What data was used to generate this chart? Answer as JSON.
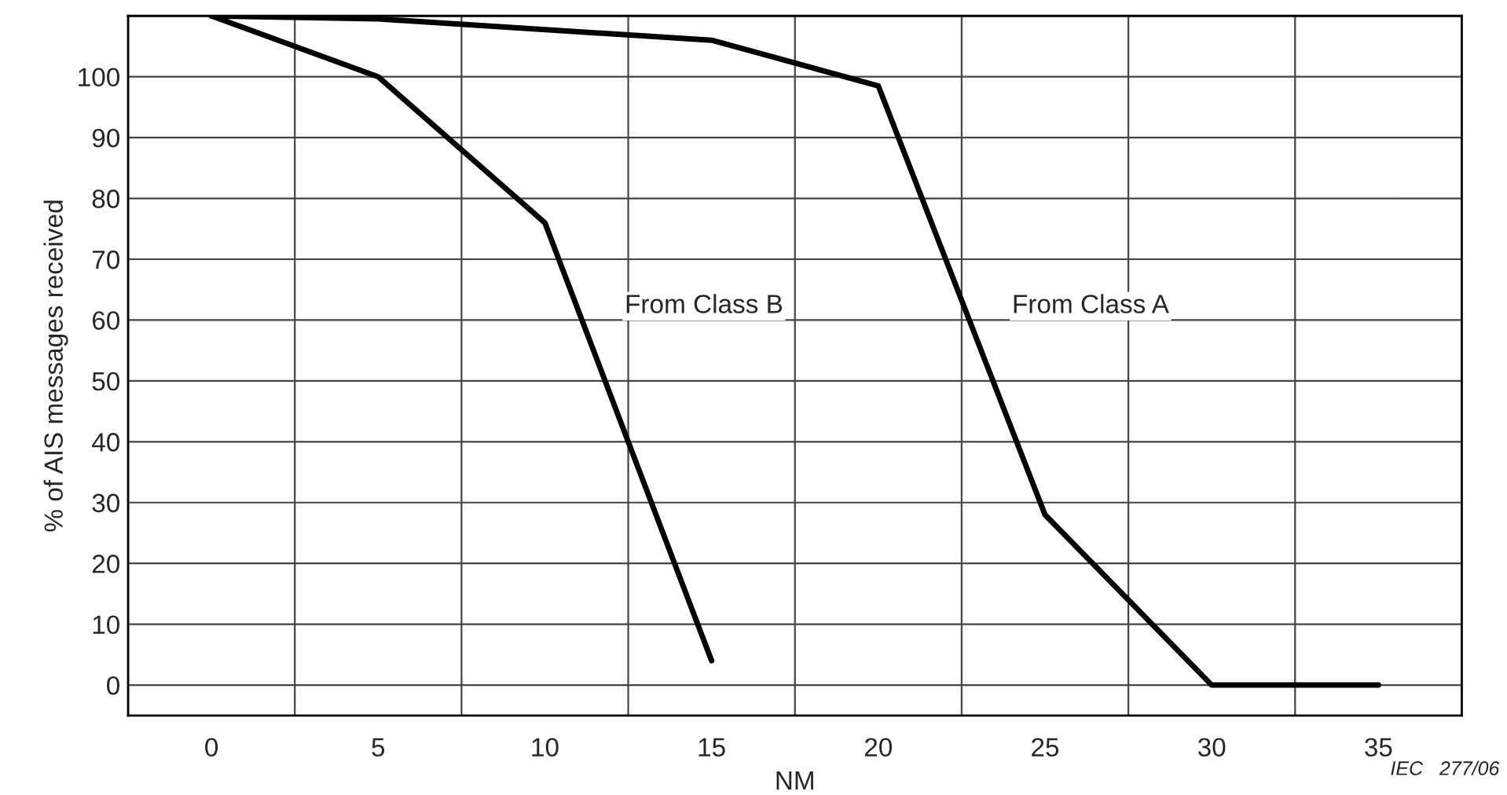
{
  "chart_data": {
    "type": "line",
    "xlabel": "NM",
    "ylabel": "% of AIS messages received",
    "series": [
      {
        "name": "From Class A",
        "color": "#000000",
        "x": [
          0,
          5,
          15,
          20,
          25,
          30,
          35
        ],
        "values": [
          110,
          109.5,
          106,
          98.5,
          28,
          0,
          0
        ]
      },
      {
        "name": "From Class B",
        "color": "#000000",
        "x": [
          0,
          5,
          10,
          15
        ],
        "values": [
          110,
          100,
          76,
          4
        ]
      }
    ],
    "xlim": [
      -2.5,
      37.5
    ],
    "ylim": [
      -5,
      110
    ],
    "xticks": [
      0,
      5,
      10,
      15,
      20,
      25,
      30,
      35,
      {
        "value": -2.5,
        "label": null
      },
      {
        "value": 2.5,
        "label": null
      },
      {
        "value": 7.5,
        "label": null
      },
      {
        "value": 12.5,
        "label": null
      },
      {
        "value": 17.5,
        "label": null
      },
      {
        "value": 22.5,
        "label": null
      },
      {
        "value": 27.5,
        "label": null
      },
      {
        "value": 32.5,
        "label": null
      },
      {
        "value": 37.5,
        "label": null
      }
    ],
    "yticks": [
      0,
      10,
      20,
      30,
      40,
      50,
      60,
      70,
      80,
      90,
      100,
      {
        "value": 110,
        "label": null
      }
    ],
    "grid": true,
    "legend": false,
    "marker": "none",
    "line_style": "solid",
    "annotations": [
      "IEC   277/06"
    ]
  }
}
